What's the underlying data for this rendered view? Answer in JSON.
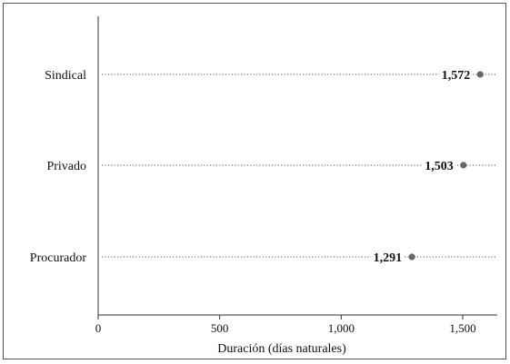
{
  "chart_data": {
    "type": "dot",
    "categories": [
      "Sindical",
      "Privado",
      "Procurador"
    ],
    "values": [
      1572,
      1503,
      1291
    ],
    "value_labels": [
      "1,572",
      "1,503",
      "1,291"
    ],
    "xlabel": "Duración (días naturales)",
    "xlim": [
      0,
      1620
    ],
    "xticks": [
      0,
      500,
      1000,
      1500
    ],
    "xtick_labels": [
      "0",
      "500",
      "1,000",
      "1,500"
    ],
    "grid": "dotted horizontal guides per category",
    "colors": {
      "point": "#666666",
      "axis": "#333333",
      "guide": "#555555",
      "text": "#111111"
    }
  }
}
